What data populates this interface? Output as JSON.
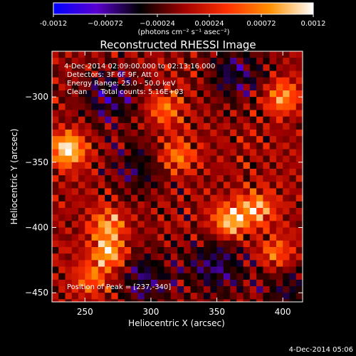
{
  "footer_date": "4-Dec-2014 05:06",
  "colorbar": {
    "ticks": [
      {
        "value": -0.0012,
        "label": "-0.0012"
      },
      {
        "value": -0.00072,
        "label": "−0.00072"
      },
      {
        "value": -0.00024,
        "label": "−0.00024"
      },
      {
        "value": 0.00024,
        "label": "0.00024"
      },
      {
        "value": 0.00072,
        "label": "0.00072"
      },
      {
        "value": 0.0012,
        "label": "0.0012"
      }
    ],
    "units": "(photons cm⁻² s⁻¹ asec⁻²)",
    "range": [
      -0.0012,
      0.0012
    ],
    "stops": [
      "#0000ff",
      "#5a00d0",
      "#000000",
      "#a00000",
      "#ff3000",
      "#ff9000",
      "#ffffff"
    ]
  },
  "chart_data": {
    "type": "heatmap",
    "title": "Reconstructed RHESSI Image",
    "xlabel": "Heliocentric X (arcsec)",
    "ylabel": "Heliocentric Y (arcsec)",
    "xlim": [
      225,
      415
    ],
    "ylim": [
      -457,
      -265
    ],
    "x_ticks": [
      {
        "value": 250,
        "label": "250"
      },
      {
        "value": 300,
        "label": "300"
      },
      {
        "value": 350,
        "label": "350"
      },
      {
        "value": 400,
        "label": "400"
      }
    ],
    "y_ticks": [
      {
        "value": -300,
        "label": "−300"
      },
      {
        "value": -350,
        "label": "−350"
      },
      {
        "value": -400,
        "label": "−400"
      },
      {
        "value": -450,
        "label": "−450"
      }
    ],
    "grid": false,
    "info_lines": [
      "4-Dec-2014 02:09:00.000 to 02:13:16.000",
      "Detectors: 3F 6F 9F, Att 0",
      "Energy Range: 25.0 - 50.0 keV",
      "Clean      Total counts: 5.16E+03"
    ],
    "peak_label": "Position of Peak = [237,-340]",
    "peak": {
      "x": 237,
      "y": -340
    },
    "bright_sources": [
      {
        "x": 237,
        "y": -340,
        "value": 0.0012
      },
      {
        "x": 268,
        "y": -420,
        "value": 0.00095
      },
      {
        "x": 268,
        "y": -398,
        "value": 0.0008
      },
      {
        "x": 360,
        "y": -395,
        "value": 0.001
      },
      {
        "x": 380,
        "y": -385,
        "value": 0.0009
      },
      {
        "x": 400,
        "y": -300,
        "value": 0.0008
      },
      {
        "x": 320,
        "y": -345,
        "value": 0.0007
      },
      {
        "x": 310,
        "y": -310,
        "value": 0.00065
      },
      {
        "x": 395,
        "y": -420,
        "value": 0.0007
      },
      {
        "x": 255,
        "y": -440,
        "value": 0.0006
      }
    ],
    "dim_regions": [
      {
        "x": 268,
        "y": -300,
        "value": -0.0005
      },
      {
        "x": 365,
        "y": -280,
        "value": -0.0005
      },
      {
        "x": 290,
        "y": -355,
        "value": -0.0004
      },
      {
        "x": 295,
        "y": -440,
        "value": -0.0005
      },
      {
        "x": 350,
        "y": -430,
        "value": -0.00055
      },
      {
        "x": 405,
        "y": -445,
        "value": -0.0004
      }
    ]
  }
}
